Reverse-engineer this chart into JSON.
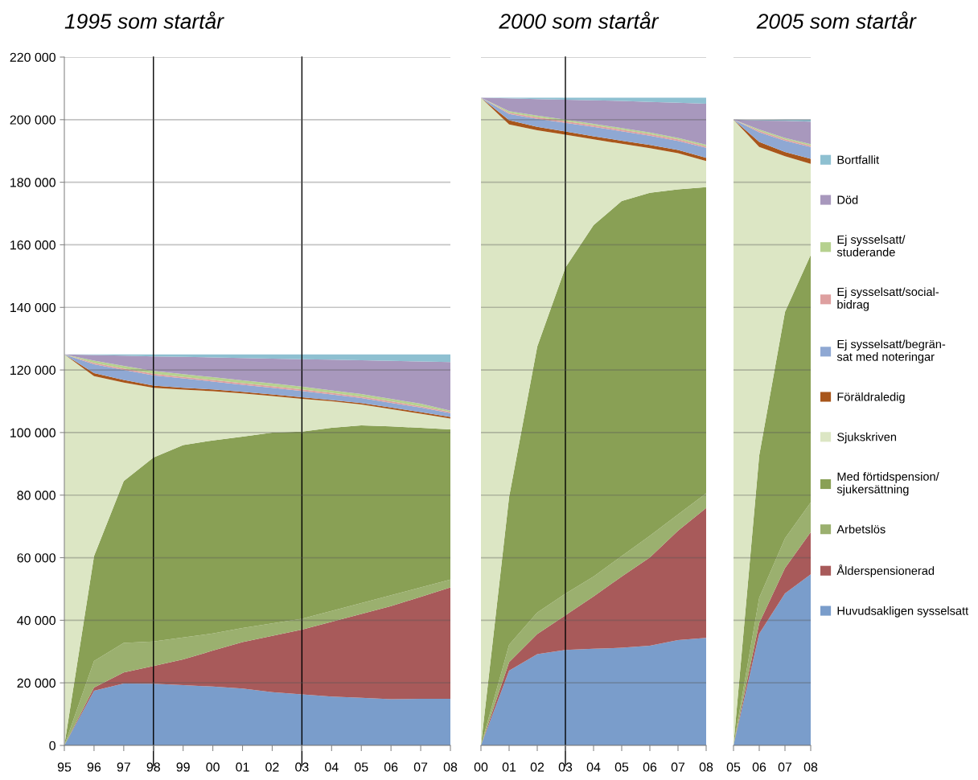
{
  "chart_data": [
    {
      "type": "area",
      "stacked": true,
      "title": "1995 som startår",
      "categories": [
        "95",
        "96",
        "97",
        "98",
        "99",
        "00",
        "01",
        "02",
        "03",
        "04",
        "05",
        "06",
        "07",
        "08"
      ],
      "ylim": [
        0,
        220000
      ],
      "yticks": [
        {
          "value": 0,
          "label": "0"
        },
        {
          "value": 20000,
          "label": "20 000"
        },
        {
          "value": 40000,
          "label": "40 000"
        },
        {
          "value": 60000,
          "label": "60 000"
        },
        {
          "value": 80000,
          "label": "80 000"
        },
        {
          "value": 100000,
          "label": "100 000"
        },
        {
          "value": 120000,
          "label": "120 000"
        },
        {
          "value": 140000,
          "label": "140 000"
        },
        {
          "value": 160000,
          "label": "160 000"
        },
        {
          "value": 180000,
          "label": "180 000"
        },
        {
          "value": 200000,
          "label": "200 000"
        },
        {
          "value": 220000,
          "label": "220 000"
        }
      ],
      "grid": "y",
      "legend": "right",
      "ref_lines": [
        {
          "axis": "x",
          "value": "98",
          "color": "#000000"
        },
        {
          "axis": "x",
          "value": "03",
          "color": "#000000"
        }
      ],
      "series": [
        {
          "name": "Huvudsakligen sysselsatt",
          "color": "#7a9dcb",
          "values": [
            0,
            17500,
            19800,
            19700,
            19300,
            18800,
            18200,
            17000,
            16300,
            15600,
            15200,
            14800,
            14900,
            14900
          ]
        },
        {
          "name": "Ålderspensionerad",
          "color": "#a85a5a",
          "values": [
            0,
            1000,
            3500,
            5700,
            8200,
            11500,
            14800,
            18000,
            20700,
            23900,
            26800,
            29700,
            32600,
            35600
          ]
        },
        {
          "name": "Arbetslös",
          "color": "#9bb06f",
          "values": [
            0,
            8500,
            9500,
            7800,
            7000,
            5500,
            4500,
            4000,
            3500,
            3500,
            3500,
            3500,
            3000,
            2500
          ]
        },
        {
          "name": "Med förtidspension/\nsjukersättning",
          "color": "#89a055",
          "values": [
            0,
            33500,
            51700,
            58800,
            61500,
            61700,
            61200,
            61000,
            59800,
            58500,
            56800,
            54000,
            51000,
            48000
          ]
        },
        {
          "name": "Sjukskriven",
          "color": "#dce6c4",
          "values": [
            125000,
            57500,
            31500,
            22300,
            17700,
            15700,
            13800,
            11700,
            10500,
            8500,
            6700,
            5500,
            4500,
            3500
          ]
        },
        {
          "name": "Föräldraledig",
          "color": "#a8561b",
          "values": [
            0,
            1000,
            800,
            700,
            600,
            600,
            500,
            500,
            500,
            400,
            400,
            500,
            500,
            500
          ]
        },
        {
          "name": "Ej sysselsatt/begrän-\nsat med noteringar",
          "color": "#8fa8d3",
          "values": [
            0,
            2800,
            3200,
            3300,
            3000,
            2500,
            2300,
            2100,
            2000,
            1800,
            1600,
            1500,
            1500,
            1200
          ]
        },
        {
          "name": "Ej sysselsatt/social-\nbidrag",
          "color": "#dea0a0",
          "values": [
            0,
            500,
            500,
            500,
            500,
            500,
            500,
            500,
            500,
            500,
            500,
            500,
            400,
            400
          ]
        },
        {
          "name": "Ej sysselsatt/\nstuderande",
          "color": "#b6d18f",
          "values": [
            0,
            700,
            800,
            900,
            900,
            900,
            900,
            900,
            900,
            800,
            800,
            800,
            800,
            400
          ]
        },
        {
          "name": "Död",
          "color": "#a898bd",
          "values": [
            0,
            1800,
            3300,
            4600,
            5500,
            6300,
            7100,
            7900,
            8700,
            9800,
            10800,
            12100,
            13500,
            15500
          ]
        },
        {
          "name": "Bortfallit",
          "color": "#8ec0d1",
          "values": [
            0,
            200,
            400,
            700,
            800,
            1000,
            1200,
            1400,
            1600,
            1700,
            1900,
            2100,
            2300,
            2500
          ]
        }
      ]
    },
    {
      "type": "area",
      "stacked": true,
      "title": "2000 som startår",
      "categories": [
        "00",
        "01",
        "02",
        "03",
        "04",
        "05",
        "06",
        "07",
        "08"
      ],
      "ylim": [
        0,
        220000
      ],
      "yticks": [
        {
          "value": 0,
          "label": null
        },
        {
          "value": 20000,
          "label": null
        },
        {
          "value": 40000,
          "label": null
        },
        {
          "value": 60000,
          "label": null
        },
        {
          "value": 80000,
          "label": null
        },
        {
          "value": 100000,
          "label": null
        },
        {
          "value": 120000,
          "label": null
        },
        {
          "value": 140000,
          "label": null
        },
        {
          "value": 160000,
          "label": null
        },
        {
          "value": 180000,
          "label": null
        },
        {
          "value": 200000,
          "label": null
        },
        {
          "value": 220000,
          "label": null
        }
      ],
      "grid": "y",
      "tick_labels": "x",
      "ref_lines": [
        {
          "axis": "x",
          "value": "03",
          "color": "#000000"
        }
      ],
      "series": [
        {
          "color": "#7a9dcb",
          "values": [
            0,
            23900,
            29200,
            30500,
            30900,
            31200,
            31900,
            33700,
            34400
          ]
        },
        {
          "color": "#a85a5a",
          "values": [
            0,
            2700,
            6400,
            11100,
            16700,
            22800,
            28200,
            34900,
            41500
          ]
        },
        {
          "color": "#9bb06f",
          "values": [
            0,
            5600,
            6900,
            6900,
            6400,
            6500,
            6900,
            5200,
            4700
          ]
        },
        {
          "color": "#89a055",
          "values": [
            0,
            47200,
            85000,
            104200,
            112300,
            113500,
            109600,
            103900,
            97800
          ]
        },
        {
          "color": "#dce6c4",
          "values": [
            207000,
            119100,
            69100,
            42500,
            27400,
            18300,
            14300,
            11600,
            8400
          ]
        },
        {
          "color": "#a8561b",
          "values": [
            0,
            1300,
            1100,
            1000,
            1000,
            1000,
            1000,
            1000,
            1000
          ]
        },
        {
          "color": "#8fa8d3",
          "values": [
            0,
            2000,
            2600,
            2800,
            3000,
            3000,
            3000,
            2900,
            3200
          ]
        },
        {
          "color": "#dea0a0",
          "values": [
            0,
            400,
            500,
            500,
            500,
            500,
            500,
            500,
            500
          ]
        },
        {
          "color": "#b6d18f",
          "values": [
            0,
            500,
            500,
            500,
            500,
            500,
            500,
            500,
            500
          ]
        },
        {
          "color": "#a898bd",
          "values": [
            0,
            4100,
            5300,
            6400,
            7500,
            8700,
            9800,
            11200,
            13100
          ]
        },
        {
          "color": "#8ec0d1",
          "values": [
            0,
            200,
            400,
            600,
            800,
            1000,
            1300,
            1600,
            1900
          ]
        }
      ]
    },
    {
      "type": "area",
      "stacked": true,
      "title": "2005 som startår",
      "categories": [
        "05",
        "06",
        "07",
        "08"
      ],
      "ylim": [
        0,
        220000
      ],
      "yticks": [
        {
          "value": 0,
          "label": null
        },
        {
          "value": 20000,
          "label": null
        },
        {
          "value": 40000,
          "label": null
        },
        {
          "value": 60000,
          "label": null
        },
        {
          "value": 80000,
          "label": null
        },
        {
          "value": 100000,
          "label": null
        },
        {
          "value": 120000,
          "label": null
        },
        {
          "value": 140000,
          "label": null
        },
        {
          "value": 160000,
          "label": null
        },
        {
          "value": 180000,
          "label": null
        },
        {
          "value": 200000,
          "label": null
        },
        {
          "value": 220000,
          "label": null
        }
      ],
      "grid": "y",
      "tick_labels": "x",
      "series": [
        {
          "color": "#7a9dcb",
          "values": [
            0,
            35700,
            48600,
            54700
          ]
        },
        {
          "color": "#a85a5a",
          "values": [
            0,
            3400,
            8100,
            13500
          ]
        },
        {
          "color": "#9bb06f",
          "values": [
            0,
            8100,
            9500,
            9500
          ]
        },
        {
          "color": "#89a055",
          "values": [
            0,
            45500,
            72300,
            79100
          ]
        },
        {
          "color": "#dce6c4",
          "values": [
            200000,
            98600,
            49800,
            29100
          ]
        },
        {
          "color": "#a8561b",
          "values": [
            0,
            1600,
            1400,
            1600
          ]
        },
        {
          "color": "#8fa8d3",
          "values": [
            0,
            3100,
            3600,
            3800
          ]
        },
        {
          "color": "#dea0a0",
          "values": [
            0,
            400,
            400,
            400
          ]
        },
        {
          "color": "#b6d18f",
          "values": [
            0,
            500,
            500,
            500
          ]
        },
        {
          "color": "#a898bd",
          "values": [
            0,
            2800,
            5400,
            7200
          ]
        },
        {
          "color": "#8ec0d1",
          "values": [
            0,
            200,
            400,
            600
          ]
        }
      ]
    }
  ]
}
